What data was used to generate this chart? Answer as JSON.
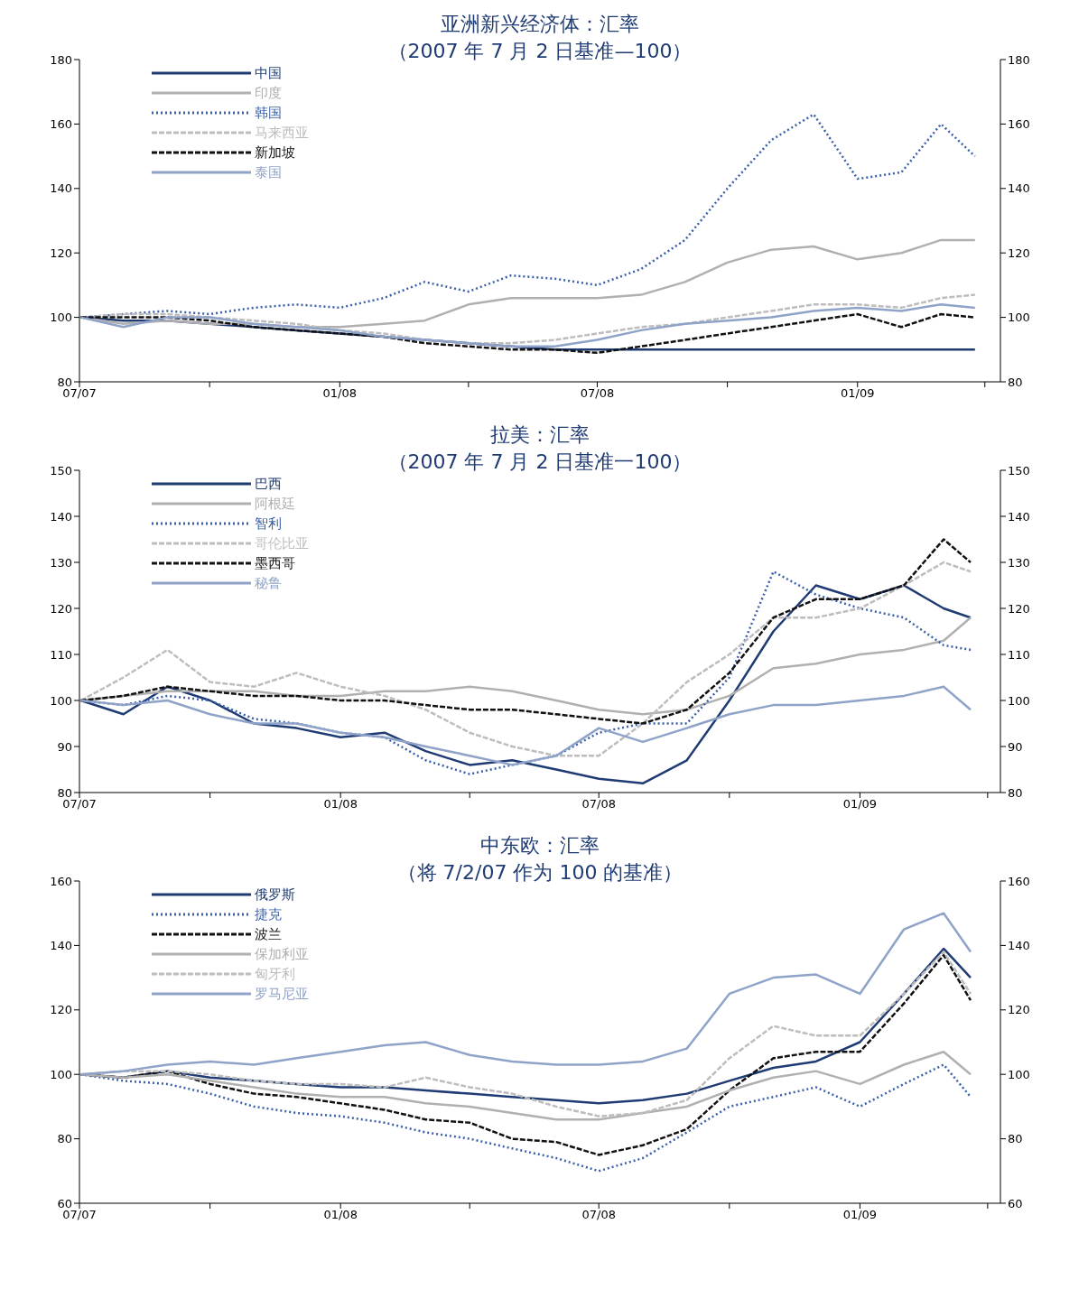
{
  "chart_data": [
    {
      "type": "line",
      "title": "亚洲新兴经济体：汇率",
      "subtitle": "（2007 年 7 月 2 日基准—100）",
      "x": [
        "2007-07-02",
        "2007-08",
        "2007-09",
        "2007-10",
        "2007-11",
        "2007-12",
        "2008-01",
        "2008-02",
        "2008-03",
        "2008-04",
        "2008-05",
        "2008-06",
        "2008-07",
        "2008-08",
        "2008-09",
        "2008-10",
        "2008-11",
        "2008-12",
        "2009-01",
        "2009-02",
        "2009-03",
        "2009-03-25"
      ],
      "xlim": [
        "2007-07-01",
        "2009-04-12"
      ],
      "xticks": [
        {
          "value": "2007-07-01",
          "label": "07/07"
        },
        {
          "value": "2007-10-01",
          "label": null
        },
        {
          "value": "2008-01-01",
          "label": "01/08"
        },
        {
          "value": "2008-04-01",
          "label": null
        },
        {
          "value": "2008-07-01",
          "label": "07/08"
        },
        {
          "value": "2008-10-01",
          "label": null
        },
        {
          "value": "2009-01-01",
          "label": "01/09"
        },
        {
          "value": "2009-04-01",
          "label": null
        }
      ],
      "ylim": [
        80,
        180
      ],
      "yticks": [
        80,
        100,
        120,
        140,
        160,
        180
      ],
      "y2lim": [
        80,
        180
      ],
      "y2ticks": [
        80,
        100,
        120,
        140,
        160,
        180
      ],
      "grid": false,
      "legend": "top left",
      "series": [
        {
          "name": "中国",
          "color": "#1f3b73",
          "line_style": "solid",
          "values": [
            100,
            99,
            99,
            98,
            97,
            96,
            95,
            94,
            93,
            92,
            91,
            90,
            90,
            90,
            90,
            90,
            90,
            90,
            90,
            90,
            90,
            90
          ]
        },
        {
          "name": "印度",
          "color": "#b0b0b0",
          "line_style": "solid",
          "values": [
            100,
            98,
            99,
            98,
            98,
            97,
            97,
            98,
            99,
            104,
            106,
            106,
            106,
            107,
            111,
            117,
            121,
            122,
            118,
            120,
            124,
            124
          ]
        },
        {
          "name": "韩国",
          "color": "#3a5fa8",
          "line_style": "dotted",
          "values": [
            100,
            101,
            102,
            101,
            103,
            104,
            103,
            106,
            111,
            108,
            113,
            112,
            110,
            115,
            124,
            140,
            155,
            163,
            143,
            145,
            160,
            150
          ]
        },
        {
          "name": "马来西亚",
          "color": "#bdbdbd",
          "line_style": "dashed",
          "values": [
            100,
            101,
            101,
            100,
            99,
            98,
            96,
            95,
            93,
            92,
            92,
            93,
            95,
            97,
            98,
            100,
            102,
            104,
            104,
            103,
            106,
            107
          ]
        },
        {
          "name": "新加坡",
          "color": "#111111",
          "line_style": "dashed",
          "values": [
            100,
            100,
            100,
            99,
            97,
            96,
            95,
            94,
            92,
            91,
            90,
            90,
            89,
            91,
            93,
            95,
            97,
            99,
            101,
            97,
            101,
            100
          ]
        },
        {
          "name": "泰国",
          "color": "#8fa3c8",
          "line_style": "solid",
          "values": [
            100,
            97,
            100,
            100,
            98,
            97,
            96,
            94,
            93,
            92,
            91,
            91,
            93,
            96,
            98,
            99,
            100,
            102,
            103,
            102,
            104,
            103
          ]
        }
      ]
    },
    {
      "type": "line",
      "title": "拉美：汇率",
      "subtitle": "（2007 年 7 月 2 日基准一100）",
      "x": [
        "2007-07-02",
        "2007-08",
        "2007-09",
        "2007-10",
        "2007-11",
        "2007-12",
        "2008-01",
        "2008-02",
        "2008-03",
        "2008-04",
        "2008-05",
        "2008-06",
        "2008-07",
        "2008-08",
        "2008-09",
        "2008-10",
        "2008-11",
        "2008-12",
        "2009-01",
        "2009-02",
        "2009-03",
        "2009-03-20"
      ],
      "xlim": [
        "2007-07-01",
        "2009-04-10"
      ],
      "xticks": [
        {
          "value": "2007-07-01",
          "label": "07/07"
        },
        {
          "value": "2007-10-01",
          "label": null
        },
        {
          "value": "2008-01-01",
          "label": "01/08"
        },
        {
          "value": "2008-04-01",
          "label": null
        },
        {
          "value": "2008-07-01",
          "label": "07/08"
        },
        {
          "value": "2008-10-01",
          "label": null
        },
        {
          "value": "2009-01-01",
          "label": "01/09"
        },
        {
          "value": "2009-04-01",
          "label": null
        }
      ],
      "ylim": [
        80,
        150
      ],
      "yticks": [
        80,
        90,
        100,
        110,
        120,
        130,
        140,
        150
      ],
      "y2lim": [
        80,
        150
      ],
      "y2ticks": [
        80,
        90,
        100,
        110,
        120,
        130,
        140,
        150
      ],
      "grid": false,
      "legend": "top left",
      "series": [
        {
          "name": "巴西",
          "color": "#1f3b73",
          "line_style": "solid",
          "values": [
            100,
            97,
            103,
            100,
            95,
            94,
            92,
            93,
            89,
            86,
            87,
            85,
            83,
            82,
            87,
            100,
            115,
            125,
            122,
            125,
            120,
            118
          ]
        },
        {
          "name": "阿根廷",
          "color": "#b0b0b0",
          "line_style": "solid",
          "values": [
            100,
            101,
            102,
            102,
            102,
            101,
            101,
            102,
            102,
            103,
            102,
            100,
            98,
            97,
            98,
            101,
            107,
            108,
            110,
            111,
            113,
            118
          ]
        },
        {
          "name": "智利",
          "color": "#3a5fa8",
          "line_style": "dotted",
          "values": [
            100,
            99,
            101,
            100,
            96,
            95,
            93,
            92,
            87,
            84,
            86,
            88,
            93,
            95,
            95,
            105,
            128,
            123,
            120,
            118,
            112,
            111
          ]
        },
        {
          "name": "哥伦比亚",
          "color": "#bdbdbd",
          "line_style": "dashed",
          "values": [
            100,
            105,
            111,
            104,
            103,
            106,
            103,
            101,
            98,
            93,
            90,
            88,
            88,
            95,
            104,
            110,
            118,
            118,
            120,
            125,
            130,
            128
          ]
        },
        {
          "name": "墨西哥",
          "color": "#111111",
          "line_style": "dashed",
          "values": [
            100,
            101,
            103,
            102,
            101,
            101,
            100,
            100,
            99,
            98,
            98,
            97,
            96,
            95,
            98,
            106,
            118,
            122,
            122,
            125,
            135,
            130
          ]
        },
        {
          "name": "秘鲁",
          "color": "#8fa3c8",
          "line_style": "solid",
          "values": [
            100,
            99,
            100,
            97,
            95,
            95,
            93,
            92,
            90,
            88,
            86,
            88,
            94,
            91,
            94,
            97,
            99,
            99,
            100,
            101,
            103,
            98
          ]
        }
      ]
    },
    {
      "type": "line",
      "title": "中东欧：汇率",
      "subtitle": "（将 7/2/07 作为 100 的基准）",
      "x": [
        "2007-07-02",
        "2007-08",
        "2007-09",
        "2007-10",
        "2007-11",
        "2007-12",
        "2008-01",
        "2008-02",
        "2008-03",
        "2008-04",
        "2008-05",
        "2008-06",
        "2008-07",
        "2008-08",
        "2008-09",
        "2008-10",
        "2008-11",
        "2008-12",
        "2009-01",
        "2009-02",
        "2009-03",
        "2009-03-20"
      ],
      "xlim": [
        "2007-07-01",
        "2009-04-10"
      ],
      "xticks": [
        {
          "value": "2007-07-01",
          "label": "07/07"
        },
        {
          "value": "2007-10-01",
          "label": null
        },
        {
          "value": "2008-01-01",
          "label": "01/08"
        },
        {
          "value": "2008-04-01",
          "label": null
        },
        {
          "value": "2008-07-01",
          "label": "07/08"
        },
        {
          "value": "2008-10-01",
          "label": null
        },
        {
          "value": "2009-01-01",
          "label": "01/09"
        },
        {
          "value": "2009-04-01",
          "label": null
        }
      ],
      "ylim": [
        60,
        160
      ],
      "yticks": [
        60,
        80,
        100,
        120,
        140,
        160
      ],
      "y2lim": [
        60,
        160
      ],
      "y2ticks": [
        60,
        80,
        100,
        120,
        140,
        160
      ],
      "grid": false,
      "legend": "top left",
      "series": [
        {
          "name": "俄罗斯",
          "color": "#1f3b73",
          "line_style": "solid",
          "values": [
            100,
            99,
            101,
            99,
            98,
            97,
            96,
            96,
            95,
            94,
            93,
            92,
            91,
            92,
            94,
            98,
            102,
            104,
            110,
            125,
            139,
            130
          ]
        },
        {
          "name": "捷克",
          "color": "#3a5fa8",
          "line_style": "dotted",
          "values": [
            100,
            98,
            97,
            94,
            90,
            88,
            87,
            85,
            82,
            80,
            77,
            74,
            70,
            74,
            82,
            90,
            93,
            96,
            90,
            97,
            103,
            93
          ]
        },
        {
          "name": "波兰",
          "color": "#111111",
          "line_style": "dashed",
          "values": [
            100,
            99,
            101,
            97,
            94,
            93,
            91,
            89,
            86,
            85,
            80,
            79,
            75,
            78,
            83,
            95,
            105,
            107,
            107,
            122,
            137,
            123
          ]
        },
        {
          "name": "保加利亚",
          "color": "#b0b0b0",
          "line_style": "solid",
          "values": [
            100,
            99,
            100,
            98,
            96,
            94,
            93,
            93,
            91,
            90,
            88,
            86,
            86,
            88,
            90,
            95,
            99,
            101,
            97,
            103,
            107,
            100
          ]
        },
        {
          "name": "匈牙利",
          "color": "#bdbdbd",
          "line_style": "dashed",
          "values": [
            100,
            101,
            101,
            100,
            98,
            97,
            97,
            96,
            99,
            96,
            94,
            90,
            87,
            88,
            92,
            105,
            115,
            112,
            112,
            125,
            138,
            125
          ]
        },
        {
          "name": "罗马尼亚",
          "color": "#8fa3c8",
          "line_style": "solid",
          "values": [
            100,
            101,
            103,
            104,
            103,
            105,
            107,
            109,
            110,
            106,
            104,
            103,
            103,
            104,
            108,
            125,
            130,
            131,
            125,
            145,
            150,
            138
          ]
        }
      ]
    }
  ]
}
